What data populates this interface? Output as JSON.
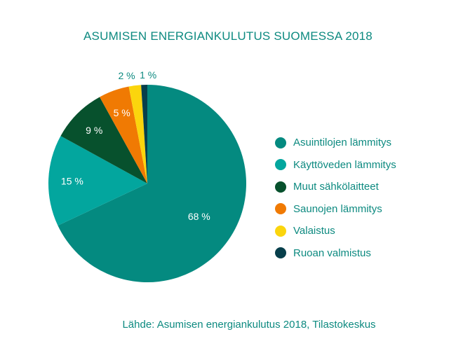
{
  "title": "ASUMISEN ENERGIANKULUTUS SUOMESSA 2018",
  "source": "Lähde: Asumisen energiankulutus 2018, Tilastokeskus",
  "chart_data": {
    "type": "pie",
    "title": "ASUMISEN ENERGIANKULUTUS SUOMESSA 2018",
    "legend_position": "right",
    "slices": [
      {
        "label": "Asuintilojen lämmitys",
        "value": 68,
        "value_label": "68 %",
        "color": "#048a80"
      },
      {
        "label": "Käyttöveden lämmitys",
        "value": 15,
        "value_label": "15 %",
        "color": "#03a69e"
      },
      {
        "label": "Muut sähkölaitteet",
        "value": 9,
        "value_label": "9 %",
        "color": "#07512d"
      },
      {
        "label": "Saunojen lämmitys",
        "value": 5,
        "value_label": "5 %",
        "color": "#f07a03"
      },
      {
        "label": "Valaistus",
        "value": 2,
        "value_label": "2 %",
        "color": "#fbd50d"
      },
      {
        "label": "Ruoan valmistus",
        "value": 1,
        "value_label": "1 %",
        "color": "#073f4b"
      }
    ]
  }
}
